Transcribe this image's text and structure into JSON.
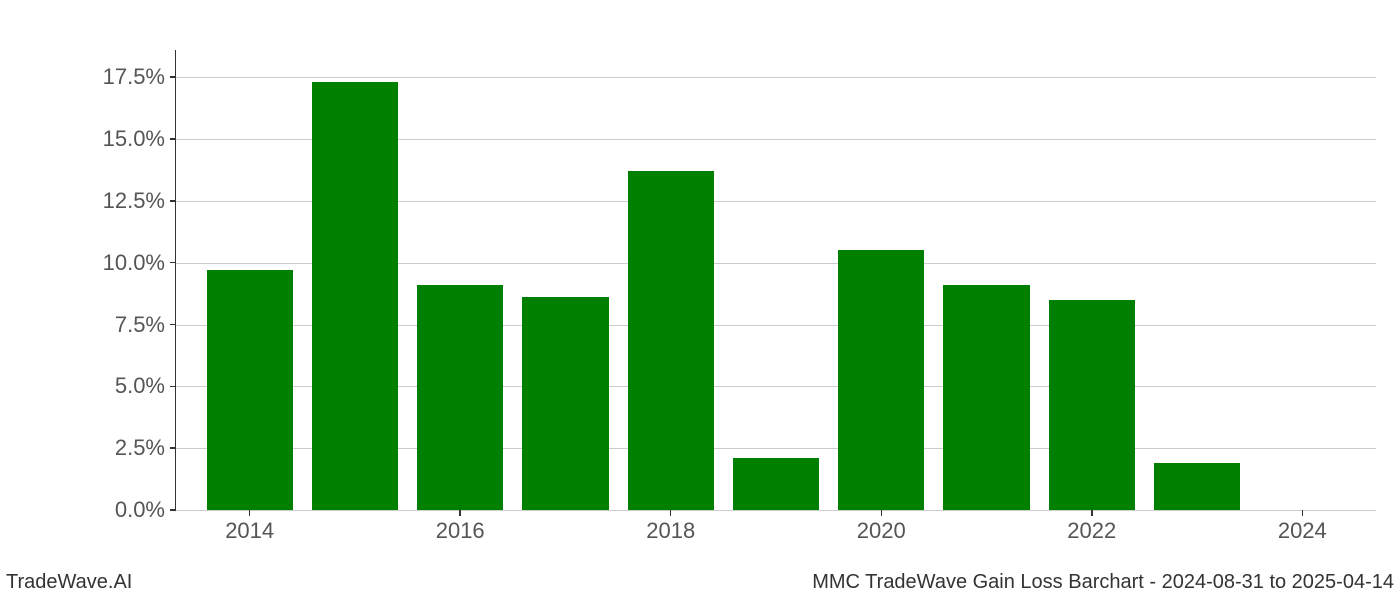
{
  "chart": {
    "type": "bar",
    "years": [
      2014,
      2015,
      2016,
      2017,
      2018,
      2019,
      2020,
      2021,
      2022,
      2023,
      2024
    ],
    "values": [
      9.7,
      17.3,
      9.1,
      8.6,
      13.7,
      2.1,
      10.5,
      9.1,
      8.5,
      1.9,
      0.0
    ],
    "bar_color": "#008000",
    "background_color": "#ffffff",
    "grid_color": "#cccccc",
    "axis_color": "#333333",
    "tick_label_color": "#555555",
    "ylim": [
      0,
      18.6
    ],
    "yticks": [
      0.0,
      2.5,
      5.0,
      7.5,
      10.0,
      12.5,
      15.0,
      17.5
    ],
    "ytick_labels": [
      "0.0%",
      "2.5%",
      "5.0%",
      "7.5%",
      "10.0%",
      "12.5%",
      "15.0%",
      "17.5%"
    ],
    "xlim": [
      2013.3,
      2024.7
    ],
    "xticks": [
      2014,
      2016,
      2018,
      2020,
      2022,
      2024
    ],
    "xtick_labels": [
      "2014",
      "2016",
      "2018",
      "2020",
      "2022",
      "2024"
    ],
    "bar_width_years": 0.82,
    "tick_fontsize": 22,
    "footer_fontsize": 20
  },
  "footer": {
    "left": "TradeWave.AI",
    "right": "MMC TradeWave Gain Loss Barchart - 2024-08-31 to 2025-04-14"
  }
}
